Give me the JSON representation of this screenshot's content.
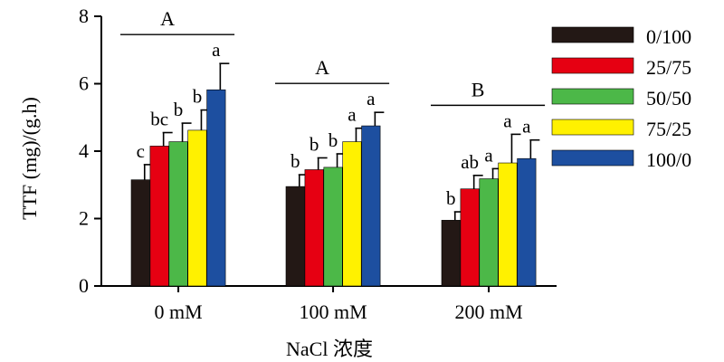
{
  "chart_data": {
    "type": "bar",
    "title": "",
    "xlabel": "NaCl 浓度",
    "ylabel": "TTF (mg)/(g.h)",
    "ylim": [
      0,
      8
    ],
    "yticks": [
      "0",
      "2",
      "4",
      "6",
      "8"
    ],
    "categories": [
      "0 mM",
      "100 mM",
      "200 mM"
    ],
    "legend_position": "right",
    "grid": false,
    "series": [
      {
        "name": "0/100",
        "color": "#231815",
        "values": [
          3.15,
          2.95,
          1.95
        ],
        "errors": [
          0.45,
          0.35,
          0.25
        ],
        "letters": [
          "c",
          "b",
          "b"
        ]
      },
      {
        "name": "25/75",
        "color": "#e60012",
        "values": [
          4.15,
          3.45,
          2.88
        ],
        "errors": [
          0.4,
          0.35,
          0.4
        ],
        "letters": [
          "bc",
          "b",
          "ab"
        ]
      },
      {
        "name": "50/50",
        "color": "#4cb848",
        "values": [
          4.28,
          3.52,
          3.18
        ],
        "errors": [
          0.55,
          0.4,
          0.3
        ],
        "letters": [
          "b",
          "b",
          "a"
        ]
      },
      {
        "name": "75/25",
        "color": "#fff100",
        "values": [
          4.62,
          4.28,
          3.65
        ],
        "errors": [
          0.6,
          0.4,
          0.85
        ],
        "letters": [
          "b",
          "a",
          "a"
        ]
      },
      {
        "name": "100/0",
        "color": "#1d4fa0",
        "values": [
          5.82,
          4.75,
          3.78
        ],
        "errors": [
          0.78,
          0.4,
          0.55
        ],
        "letters": [
          "a",
          "a",
          "a"
        ]
      }
    ],
    "group_letters": [
      "A",
      "A",
      "B"
    ]
  }
}
